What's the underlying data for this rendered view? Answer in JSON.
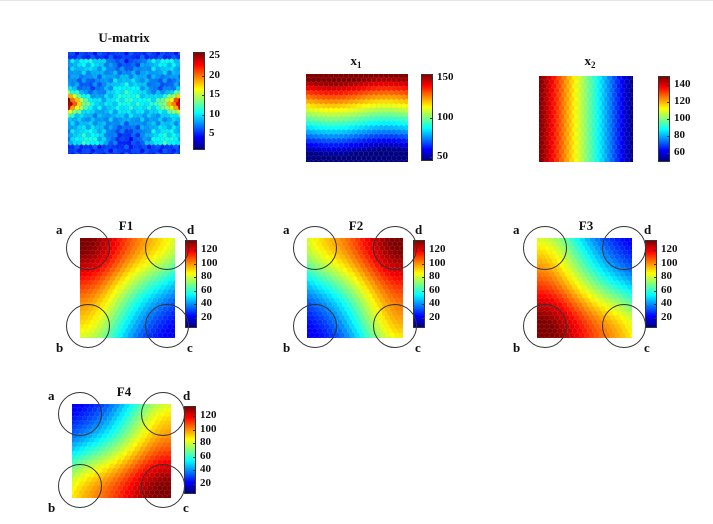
{
  "figure": {
    "panels": [
      {
        "id": "umatrix",
        "title": "U-matrix",
        "subscript": "",
        "ticks": [
          "25",
          "20",
          "15",
          "10",
          "5"
        ],
        "tick_values": [
          25,
          20,
          15,
          10,
          5
        ],
        "range": [
          1,
          26
        ],
        "pattern": "umatrix",
        "circles": false
      },
      {
        "id": "x1",
        "title": "x",
        "subscript": "1",
        "ticks": [
          "150",
          "100",
          "50"
        ],
        "tick_values": [
          150,
          100,
          50
        ],
        "range": [
          45,
          155
        ],
        "pattern": "x1",
        "circles": false
      },
      {
        "id": "x2",
        "title": "x",
        "subscript": "2",
        "ticks": [
          "140",
          "120",
          "100",
          "80",
          "60"
        ],
        "tick_values": [
          140,
          120,
          100,
          80,
          60
        ],
        "range": [
          50,
          150
        ],
        "pattern": "x2",
        "circles": false
      },
      {
        "id": "f1",
        "title": "F1",
        "subscript": "",
        "ticks": [
          "120",
          "100",
          "80",
          "60",
          "40",
          "20"
        ],
        "tick_values": [
          120,
          100,
          80,
          60,
          40,
          20
        ],
        "range": [
          5,
          135
        ],
        "pattern": "f1",
        "circles": true
      },
      {
        "id": "f2",
        "title": "F2",
        "subscript": "",
        "ticks": [
          "120",
          "100",
          "80",
          "60",
          "40",
          "20"
        ],
        "tick_values": [
          120,
          100,
          80,
          60,
          40,
          20
        ],
        "range": [
          5,
          135
        ],
        "pattern": "f2",
        "circles": true
      },
      {
        "id": "f3",
        "title": "F3",
        "subscript": "",
        "ticks": [
          "120",
          "100",
          "80",
          "60",
          "40",
          "20"
        ],
        "tick_values": [
          120,
          100,
          80,
          60,
          40,
          20
        ],
        "range": [
          5,
          135
        ],
        "pattern": "f3",
        "circles": true
      },
      {
        "id": "f4",
        "title": "F4",
        "subscript": "",
        "ticks": [
          "120",
          "100",
          "80",
          "60",
          "40",
          "20"
        ],
        "tick_values": [
          120,
          100,
          80,
          60,
          40,
          20
        ],
        "range": [
          5,
          135
        ],
        "pattern": "f4",
        "circles": true
      }
    ],
    "corner_labels": {
      "a": "a",
      "b": "b",
      "c": "c",
      "d": "d"
    },
    "colormap": "jet"
  }
}
